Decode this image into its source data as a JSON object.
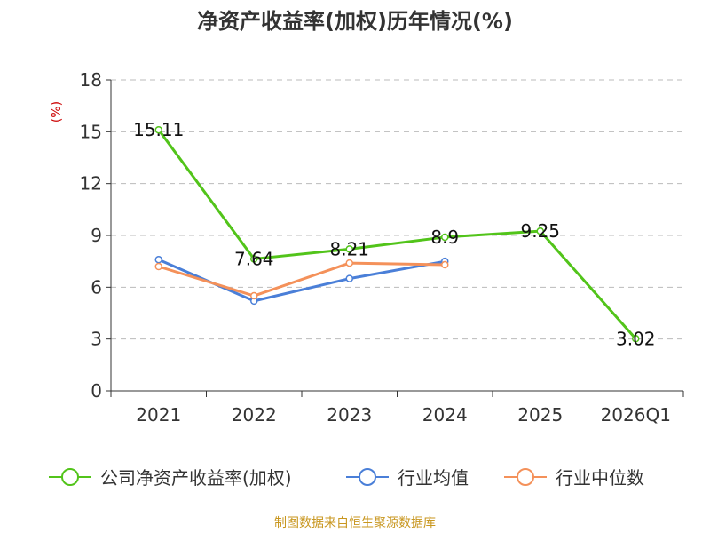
{
  "chart_data": {
    "type": "line",
    "title": "净资产收益率(加权)历年情况(%)",
    "ylabel": "(%)",
    "xlabel": "",
    "ylim": [
      0,
      18
    ],
    "yticks": [
      0,
      3,
      6,
      9,
      12,
      15,
      18
    ],
    "categories": [
      "2021",
      "2022",
      "2023",
      "2024",
      "2025",
      "2026Q1"
    ],
    "grid": true,
    "legend_position": "bottom",
    "series": [
      {
        "name": "公司净资产收益率(加权)",
        "values": [
          15.11,
          7.64,
          8.21,
          8.9,
          9.25,
          3.02
        ],
        "labels": [
          "15.11",
          "7.64",
          "8.21",
          "8.9",
          "9.25",
          "3.02"
        ],
        "color": "#52c41a"
      },
      {
        "name": "行业均值",
        "values": [
          7.6,
          5.2,
          6.5,
          7.5,
          null,
          null
        ],
        "color": "#4a7fd8"
      },
      {
        "name": "行业中位数",
        "values": [
          7.2,
          5.5,
          7.4,
          7.3,
          null,
          null
        ],
        "color": "#f4915a"
      }
    ]
  },
  "footer": "制图数据来自恒生聚源数据库",
  "colors": {
    "axis": "#333333",
    "grid": "#bbbbbb",
    "ylabel": "#cc0000",
    "footer": "#c8961e"
  }
}
